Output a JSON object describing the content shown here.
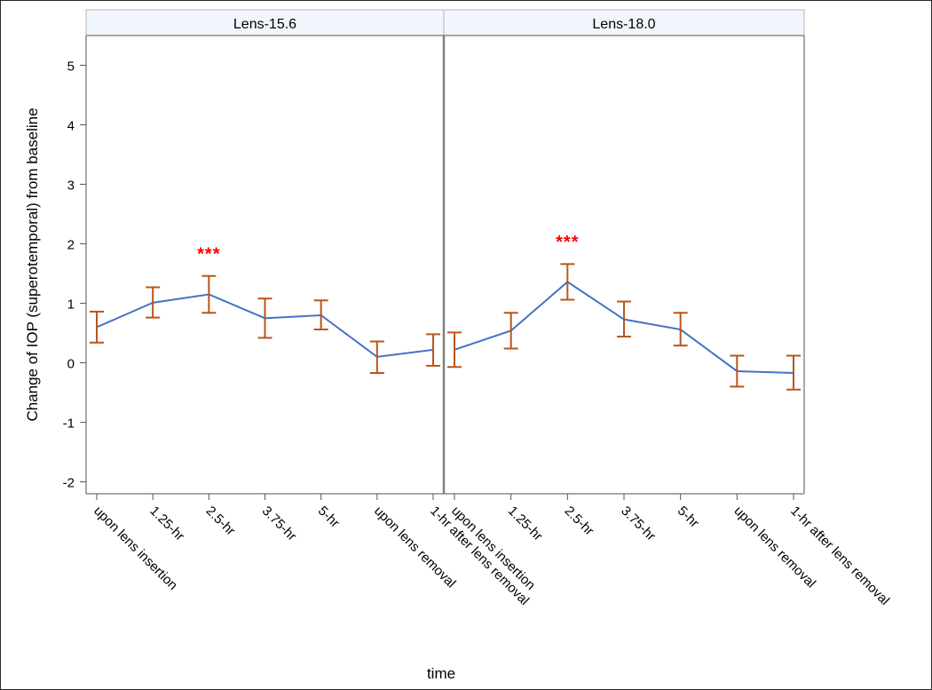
{
  "chart_data": {
    "type": "line",
    "panels": [
      {
        "title": "Lens-15.6",
        "points": [
          {
            "x": "upon lens insertion",
            "mean": 0.6,
            "lower": 0.34,
            "upper": 0.86
          },
          {
            "x": "1.25-hr",
            "mean": 1.01,
            "lower": 0.76,
            "upper": 1.27
          },
          {
            "x": "2.5-hr",
            "mean": 1.15,
            "lower": 0.84,
            "upper": 1.46
          },
          {
            "x": "3.75-hr",
            "mean": 0.75,
            "lower": 0.42,
            "upper": 1.08
          },
          {
            "x": "5-hr",
            "mean": 0.8,
            "lower": 0.56,
            "upper": 1.05
          },
          {
            "x": "upon lens removal",
            "mean": 0.1,
            "lower": -0.17,
            "upper": 0.36
          },
          {
            "x": "1-hr after lens removal",
            "mean": 0.22,
            "lower": -0.05,
            "upper": 0.48
          }
        ],
        "annotations": [
          {
            "x": "2.5-hr",
            "y": 1.85,
            "text": "***"
          }
        ]
      },
      {
        "title": "Lens-18.0",
        "points": [
          {
            "x": "upon lens insertion",
            "mean": 0.22,
            "lower": -0.07,
            "upper": 0.51
          },
          {
            "x": "1.25-hr",
            "mean": 0.54,
            "lower": 0.24,
            "upper": 0.84
          },
          {
            "x": "2.5-hr",
            "mean": 1.36,
            "lower": 1.06,
            "upper": 1.66
          },
          {
            "x": "3.75-hr",
            "mean": 0.73,
            "lower": 0.44,
            "upper": 1.03
          },
          {
            "x": "5-hr",
            "mean": 0.56,
            "lower": 0.29,
            "upper": 0.84
          },
          {
            "x": "upon lens removal",
            "mean": -0.14,
            "lower": -0.4,
            "upper": 0.12
          },
          {
            "x": "1-hr after lens removal",
            "mean": -0.17,
            "lower": -0.45,
            "upper": 0.12
          }
        ],
        "annotations": [
          {
            "x": "2.5-hr",
            "y": 2.05,
            "text": "***"
          }
        ]
      }
    ],
    "categories": [
      "upon lens insertion",
      "1.25-hr",
      "2.5-hr",
      "3.75-hr",
      "5-hr",
      "upon lens removal",
      "1-hr after lens removal"
    ],
    "ylabel": "Change of IOP (superotemporal) from baseline",
    "xlabel": "time",
    "ylim": [
      -2.2,
      5.5
    ],
    "yticks": [
      -2,
      -1,
      0,
      1,
      2,
      3,
      4,
      5
    ],
    "colors": {
      "line": "#4472c4",
      "errorbar": "#b8561c",
      "annotation": "#ff0000",
      "panel_header": "#f1f5fc",
      "frame": "#8c8c8c"
    }
  }
}
